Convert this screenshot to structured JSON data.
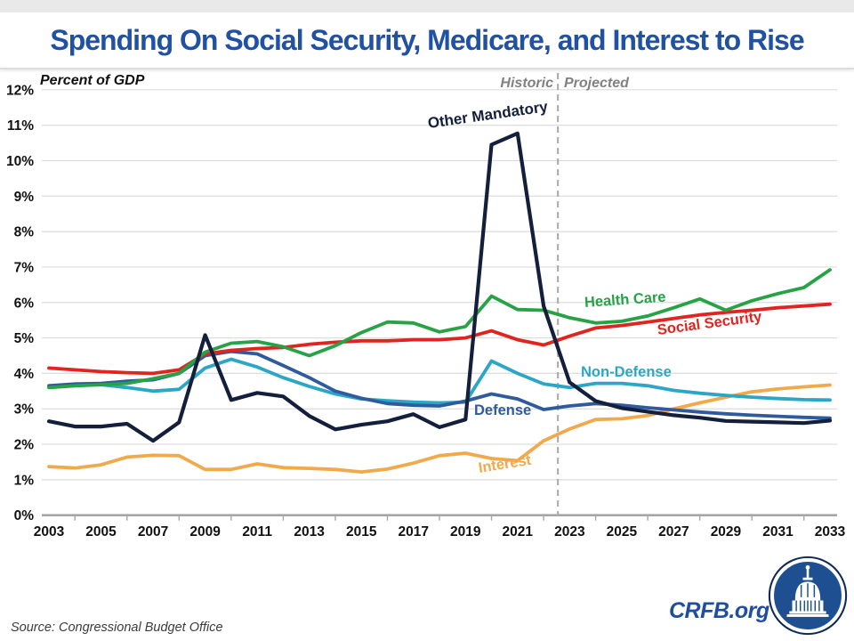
{
  "slide": {
    "title": "Spending On Social Security, Medicare, and Interest to Rise",
    "source": "Source: Congressional Budget Office",
    "brand": "CRFB.org"
  },
  "annotations": {
    "axis_note": "Percent of GDP",
    "historic": "Historic",
    "projected": "Projected"
  },
  "chart_data": {
    "type": "line",
    "title": "Spending On Social Security, Medicare, and Interest to Rise",
    "xlabel": "",
    "ylabel": "Percent of GDP",
    "x": [
      2003,
      2004,
      2005,
      2006,
      2007,
      2008,
      2009,
      2010,
      2011,
      2012,
      2013,
      2014,
      2015,
      2016,
      2017,
      2018,
      2019,
      2020,
      2021,
      2022,
      2023,
      2024,
      2025,
      2026,
      2027,
      2028,
      2029,
      2030,
      2031,
      2032,
      2033
    ],
    "x_tick_labels": [
      "2003",
      "2005",
      "2007",
      "2009",
      "2011",
      "2013",
      "2015",
      "2017",
      "2019",
      "2021",
      "2023",
      "2025",
      "2027",
      "2029",
      "2031",
      "2033"
    ],
    "y_tick_labels": [
      "0%",
      "1%",
      "2%",
      "3%",
      "4%",
      "5%",
      "6%",
      "7%",
      "8%",
      "9%",
      "10%",
      "11%",
      "12%"
    ],
    "ylim": [
      0,
      12
    ],
    "grid": true,
    "legend_position": "inline-labels",
    "divider": {
      "x": 2022.55,
      "left_label": "Historic",
      "right_label": "Projected"
    },
    "series": [
      {
        "name": "Other Mandatory",
        "color": "#141F3C",
        "values": [
          2.65,
          2.5,
          2.5,
          2.58,
          2.1,
          2.62,
          5.08,
          3.25,
          3.45,
          3.35,
          2.8,
          2.42,
          2.55,
          2.65,
          2.85,
          2.48,
          2.7,
          10.45,
          10.77,
          5.9,
          3.75,
          3.22,
          3.02,
          2.92,
          2.82,
          2.75,
          2.66,
          2.64,
          2.62,
          2.6,
          2.67
        ]
      },
      {
        "name": "Health Care",
        "color": "#27A245",
        "values": [
          3.6,
          3.65,
          3.68,
          3.72,
          3.85,
          4.0,
          4.6,
          4.85,
          4.9,
          4.75,
          4.5,
          4.78,
          5.15,
          5.45,
          5.42,
          5.17,
          5.32,
          6.18,
          5.8,
          5.78,
          5.57,
          5.42,
          5.47,
          5.62,
          5.85,
          6.1,
          5.78,
          6.05,
          6.25,
          6.42,
          6.92
        ]
      },
      {
        "name": "Social Security",
        "color": "#E02420",
        "values": [
          4.15,
          4.1,
          4.05,
          4.02,
          4.0,
          4.1,
          4.55,
          4.65,
          4.7,
          4.73,
          4.82,
          4.88,
          4.92,
          4.92,
          4.95,
          4.95,
          5.0,
          5.2,
          4.95,
          4.8,
          5.05,
          5.28,
          5.35,
          5.45,
          5.55,
          5.65,
          5.72,
          5.78,
          5.85,
          5.9,
          5.95
        ]
      },
      {
        "name": "Non-Defense",
        "color": "#2BA6C6",
        "values": [
          3.62,
          3.66,
          3.68,
          3.6,
          3.5,
          3.55,
          4.15,
          4.4,
          4.18,
          3.88,
          3.63,
          3.42,
          3.28,
          3.23,
          3.19,
          3.17,
          3.19,
          4.35,
          4.0,
          3.7,
          3.6,
          3.72,
          3.72,
          3.65,
          3.52,
          3.44,
          3.38,
          3.33,
          3.29,
          3.26,
          3.25
        ]
      },
      {
        "name": "Defense",
        "color": "#2F5B9D",
        "values": [
          3.65,
          3.7,
          3.72,
          3.78,
          3.82,
          4.0,
          4.5,
          4.62,
          4.55,
          4.22,
          3.88,
          3.5,
          3.3,
          3.15,
          3.1,
          3.08,
          3.22,
          3.42,
          3.28,
          2.98,
          3.08,
          3.15,
          3.1,
          3.03,
          2.97,
          2.91,
          2.86,
          2.82,
          2.79,
          2.76,
          2.74
        ]
      },
      {
        "name": "Interest",
        "color": "#F0A94B",
        "values": [
          1.37,
          1.33,
          1.42,
          1.64,
          1.69,
          1.68,
          1.29,
          1.29,
          1.45,
          1.34,
          1.32,
          1.29,
          1.22,
          1.3,
          1.47,
          1.68,
          1.75,
          1.6,
          1.54,
          2.1,
          2.43,
          2.7,
          2.72,
          2.81,
          3.0,
          3.17,
          3.33,
          3.48,
          3.56,
          3.62,
          3.67
        ]
      }
    ]
  }
}
